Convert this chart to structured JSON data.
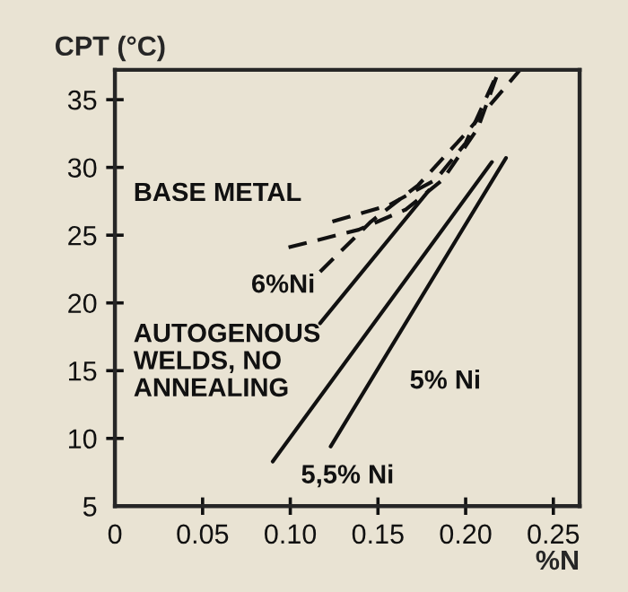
{
  "chart_data": {
    "type": "line",
    "ylabel": "CPT (°C)",
    "xlabel": "%N",
    "annotations": [
      "BASE METAL",
      "AUTOGENOUS\nWELDS, NO\nANNEALING"
    ],
    "xlim": [
      0,
      0.265
    ],
    "ylim": [
      5,
      37.2
    ],
    "xticks": [
      0,
      {
        "value": 0.05,
        "label": "0.05"
      },
      {
        "value": 0.1,
        "label": "0.10"
      },
      {
        "value": 0.15,
        "label": "0.15"
      },
      {
        "value": 0.2,
        "label": "0.20"
      },
      {
        "value": 0.25,
        "label": "0.25"
      }
    ],
    "yticks": [
      5,
      10,
      15,
      20,
      25,
      30,
      35
    ],
    "grid": false,
    "legend": false,
    "marker": "none",
    "series": [
      {
        "color": "#111111",
        "line_style": "dashed",
        "x": [
          0.124,
          0.156,
          0.183,
          0.2,
          0.219
        ],
        "values": [
          26.0,
          27.2,
          29.1,
          31.8,
          37.2
        ]
      },
      {
        "color": "#111111",
        "line_style": "dashed",
        "x": [
          0.099,
          0.139,
          0.166,
          0.187,
          0.207,
          0.219
        ],
        "values": [
          24.1,
          25.4,
          26.9,
          29.1,
          32.9,
          37.2
        ]
      },
      {
        "color": "#111111",
        "line_style": "dashed",
        "x": [
          0.117,
          0.146,
          0.173,
          0.2,
          0.231
        ],
        "values": [
          22.3,
          26.0,
          28.7,
          32.5,
          37.2
        ]
      },
      {
        "name": "6%Ni",
        "color": "#111111",
        "line_style": "solid",
        "x": [
          0.117,
          0.179
        ],
        "values": [
          18.5,
          28.3
        ]
      },
      {
        "name": "5,5% Ni",
        "color": "#111111",
        "line_style": "solid",
        "x": [
          0.09,
          0.215
        ],
        "values": [
          8.3,
          30.4
        ]
      },
      {
        "name": "5% Ni",
        "color": "#111111",
        "line_style": "solid",
        "x": [
          0.123,
          0.223
        ],
        "values": [
          9.4,
          30.7
        ]
      }
    ]
  }
}
